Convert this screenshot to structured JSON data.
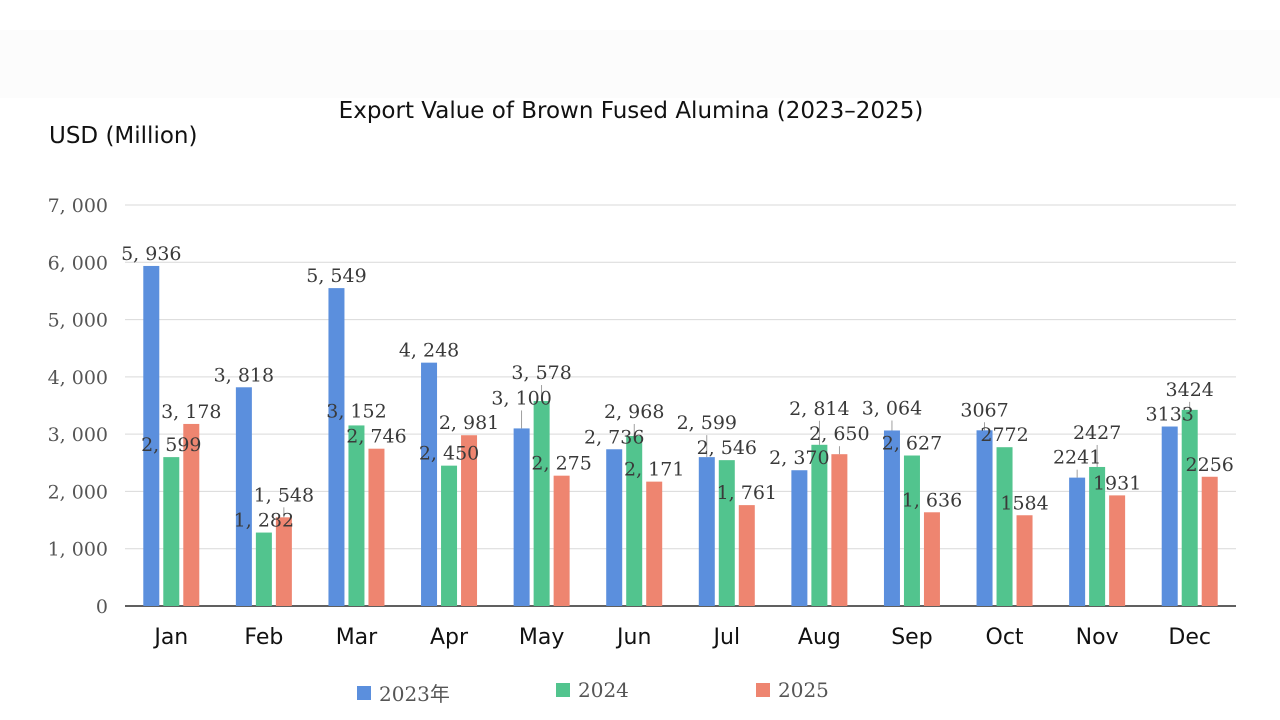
{
  "chart_data": {
    "type": "bar",
    "title": "Export Value of Brown Fused Alumina (2023–2025)",
    "ylabel": "USD (Million)",
    "xlabel": "",
    "ylim": [
      0,
      7000
    ],
    "yticks": [
      0,
      1000,
      2000,
      3000,
      4000,
      5000,
      6000,
      7000
    ],
    "ytick_labels": [
      "0",
      "1, 000",
      "2, 000",
      "3, 000",
      "4, 000",
      "5, 000",
      "6, 000",
      "7, 000"
    ],
    "grid": true,
    "legend_position": "bottom",
    "categories": [
      "Jan",
      "Feb",
      "Mar",
      "Apr",
      "May",
      "Jun",
      "Jul",
      "Aug",
      "Sep",
      "Oct",
      "Nov",
      "Dec"
    ],
    "series": [
      {
        "name": "2023年",
        "color": "#5b8fdd",
        "values": [
          5936,
          3818,
          5549,
          4248,
          3100,
          2736,
          2599,
          2370,
          3064,
          3067,
          2241,
          3133
        ],
        "labels": [
          "5, 936",
          "3, 818",
          "5, 549",
          "4, 248",
          "3, 100",
          "2, 736",
          "2, 599",
          "2, 370",
          "3, 064",
          "3067",
          "2241",
          "3133"
        ]
      },
      {
        "name": "2024",
        "color": "#52c48e",
        "values": [
          2599,
          1282,
          3152,
          2450,
          3578,
          2968,
          2546,
          2814,
          2627,
          2772,
          2427,
          3424
        ],
        "labels": [
          "2, 599",
          "1, 282",
          "3, 152",
          "2, 450",
          "3, 578",
          "2, 968",
          "2, 546",
          "2, 814",
          "2, 627",
          "2772",
          "2427",
          "3424"
        ]
      },
      {
        "name": "2025",
        "color": "#ee8570",
        "values": [
          3178,
          1548,
          2746,
          2981,
          2275,
          2171,
          1761,
          2650,
          1636,
          1584,
          1931,
          2256
        ],
        "labels": [
          "3, 178",
          "1, 548",
          "2, 746",
          "2, 981",
          "2, 275",
          "2, 171",
          "1, 761",
          "2, 650",
          "1, 636",
          "1584",
          "1931",
          "2256"
        ]
      }
    ]
  }
}
